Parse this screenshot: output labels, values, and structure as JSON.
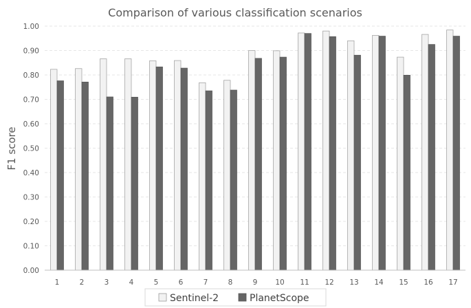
{
  "chart_data": {
    "type": "bar",
    "title": "Comparison of various classification scenarios",
    "xlabel": "",
    "ylabel": "F1 score",
    "ylim": [
      0,
      1
    ],
    "yticks": [
      "0.00",
      "0.10",
      "0.20",
      "0.30",
      "0.40",
      "0.50",
      "0.60",
      "0.70",
      "0.80",
      "0.90",
      "1.00"
    ],
    "categories": [
      "1",
      "2",
      "3",
      "4",
      "5",
      "6",
      "7",
      "8",
      "9",
      "10",
      "11",
      "12",
      "13",
      "14",
      "15",
      "16",
      "17"
    ],
    "series": [
      {
        "name": "Sentinel-2",
        "color": "#f2f2f2",
        "values": [
          0.823,
          0.826,
          0.866,
          0.866,
          0.858,
          0.859,
          0.768,
          0.778,
          0.9,
          0.899,
          0.972,
          0.98,
          0.94,
          0.962,
          0.873,
          0.966,
          0.984
        ]
      },
      {
        "name": "PlanetScope",
        "color": "#666666",
        "values": [
          0.776,
          0.771,
          0.71,
          0.709,
          0.833,
          0.828,
          0.735,
          0.738,
          0.868,
          0.873,
          0.97,
          0.957,
          0.881,
          0.959,
          0.799,
          0.925,
          0.959
        ]
      }
    ],
    "grid": true,
    "legend_position": "bottom"
  }
}
